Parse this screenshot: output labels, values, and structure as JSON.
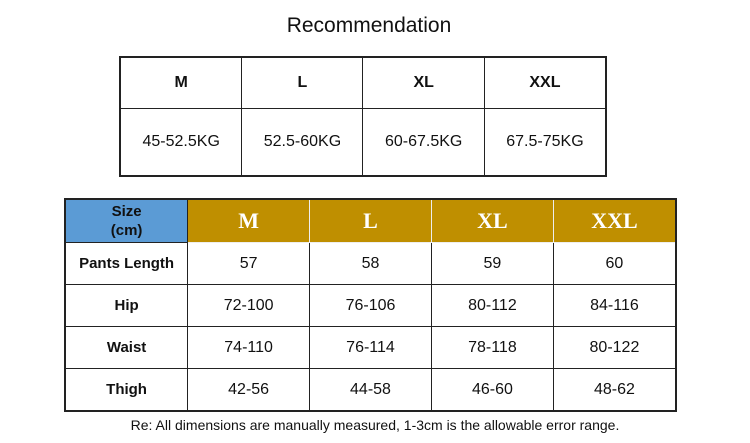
{
  "title": "Recommendation",
  "recommendation": {
    "sizes": [
      "M",
      "L",
      "XL",
      "XXL"
    ],
    "weights": [
      "45-52.5KG",
      "52.5-60KG",
      "60-67.5KG",
      "67.5-75KG"
    ]
  },
  "size_chart": {
    "corner_label_line1": "Size",
    "corner_label_line2": "(cm)",
    "sizes": [
      "M",
      "L",
      "XL",
      "XXL"
    ],
    "rows": [
      {
        "label": "Pants Length",
        "values": [
          "57",
          "58",
          "59",
          "60"
        ]
      },
      {
        "label": "Hip",
        "values": [
          "72-100",
          "76-106",
          "80-112",
          "84-116"
        ]
      },
      {
        "label": "Waist",
        "values": [
          "74-110",
          "76-114",
          "78-118",
          "80-122"
        ]
      },
      {
        "label": "Thigh",
        "values": [
          "42-56",
          "44-58",
          "46-60",
          "48-62"
        ]
      }
    ],
    "colors": {
      "corner": "#5b9bd5",
      "header": "#bf8f00"
    }
  },
  "note": "Re: All dimensions are manually measured, 1-3cm is the allowable error range."
}
